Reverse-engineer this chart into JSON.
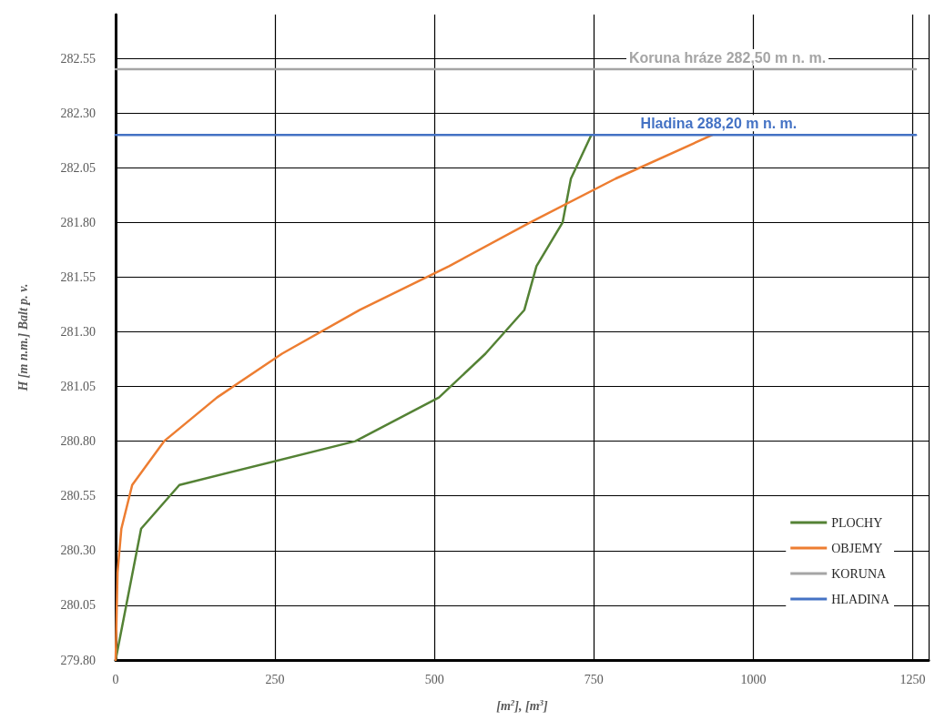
{
  "chart_data": {
    "type": "line",
    "xlabel": "[m$^{2}$], [m$^{3}$]",
    "ylabel": "H [m n.m.] Balt p. v.",
    "series": [
      {
        "name": "PLOCHY",
        "color": "#548235",
        "x": [
          0,
          40,
          100,
          376,
          507,
          580,
          641,
          660,
          701,
          714,
          746
        ],
        "values": [
          279.8,
          280.4,
          280.6,
          280.8,
          281.0,
          281.2,
          281.4,
          281.6,
          281.8,
          282.0,
          282.2
        ]
      },
      {
        "name": "OBJEMY",
        "color": "#ed7d31",
        "x": [
          0,
          3,
          9,
          26,
          76,
          159,
          261,
          383,
          523,
          650,
          784,
          936
        ],
        "values": [
          279.8,
          280.2,
          280.4,
          280.6,
          280.8,
          281.0,
          281.2,
          281.4,
          281.6,
          281.8,
          282.0,
          282.2
        ]
      },
      {
        "name": "KORUNA",
        "color": "#a5a5a5",
        "x": [
          0,
          1255
        ],
        "values": [
          282.5,
          282.5
        ]
      },
      {
        "name": "HLADINA",
        "color": "#4472c4",
        "x": [
          0,
          1255
        ],
        "values": [
          282.2,
          282.2
        ]
      }
    ],
    "annotations": [
      {
        "text": "Koruna hráze 282,50 m n. m.",
        "x": 801,
        "y": 282.5
      },
      {
        "text": "Hladina 288,20 m n. m.",
        "x": 819,
        "y": 282.2
      }
    ],
    "xlim": [
      0,
      1275
    ],
    "xticks": [
      0,
      250,
      500,
      750,
      1000,
      1250
    ],
    "ylim": [
      279.8,
      282.75
    ],
    "yticks": [
      {
        "value": 279.8,
        "label": "279.80"
      },
      {
        "value": 280.05,
        "label": "280.05"
      },
      {
        "value": 280.3,
        "label": "280.30"
      },
      {
        "value": 280.55,
        "label": "280.55"
      },
      {
        "value": 280.8,
        "label": "280.80"
      },
      {
        "value": 281.05,
        "label": "281.05"
      },
      {
        "value": 281.3,
        "label": "281.30"
      },
      {
        "value": 281.55,
        "label": "281.55"
      },
      {
        "value": 281.8,
        "label": "281.80"
      },
      {
        "value": 282.05,
        "label": "282.05"
      },
      {
        "value": 282.3,
        "label": "282.30"
      },
      {
        "value": 282.55,
        "label": "282.55"
      }
    ],
    "grid": true,
    "legend": "bottom right",
    "marker": "none",
    "line_style": "solid"
  }
}
